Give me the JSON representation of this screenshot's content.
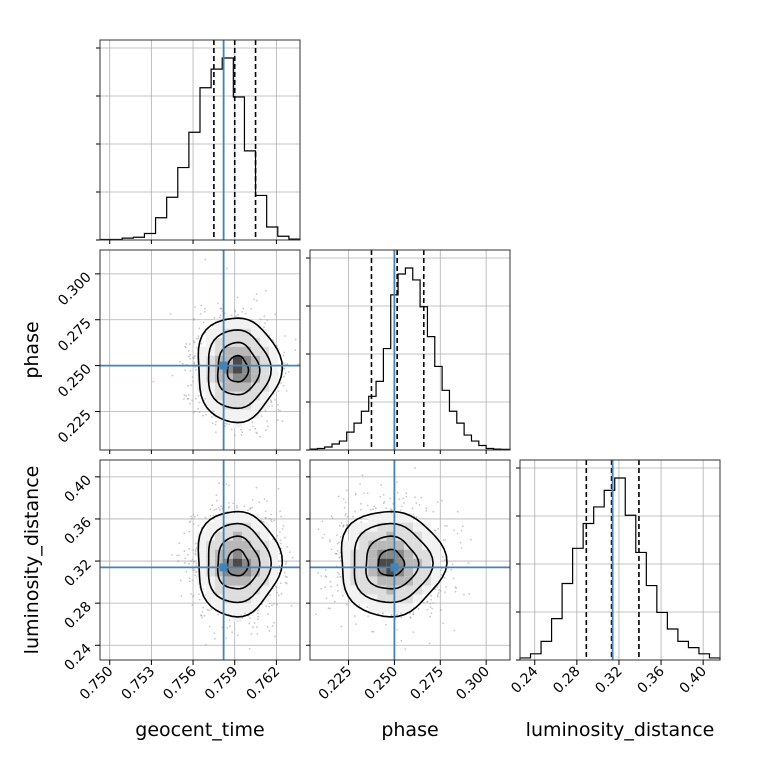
{
  "chart_data": {
    "type": "corner",
    "parameters": [
      "geocent_time",
      "phase",
      "luminosity_distance"
    ],
    "truth": {
      "geocent_time": 0.7582,
      "phase": 0.25,
      "luminosity_distance": 0.314
    },
    "sample_mean": {
      "geocent_time": 0.7592,
      "phase": 0.248,
      "luminosity_distance": 0.318
    },
    "axes": {
      "geocent_time": {
        "xlabel": "geocent_time",
        "range": [
          0.7493,
          0.7637
        ],
        "ticks": [
          0.75,
          0.753,
          0.756,
          0.759,
          0.762
        ],
        "tick_labels": [
          "0.750",
          "0.753",
          "0.756",
          "0.759",
          "0.762"
        ]
      },
      "phase": {
        "xlabel": "phase",
        "ylabel": "phase",
        "range": [
          0.204,
          0.313
        ],
        "ticks": [
          0.225,
          0.25,
          0.275,
          0.3
        ],
        "tick_labels": [
          "0.225",
          "0.250",
          "0.275",
          "0.300"
        ]
      },
      "luminosity_distance": {
        "xlabel": "luminosity_distance",
        "ylabel": "luminosity_distance",
        "range": [
          0.226,
          0.416
        ],
        "ticks": [
          0.24,
          0.28,
          0.32,
          0.36,
          0.4
        ],
        "tick_labels": [
          "0.24",
          "0.28",
          "0.32",
          "0.36",
          "0.40"
        ]
      }
    },
    "histograms": [
      {
        "param": "geocent_time",
        "bins": [
          0.7493,
          0.7501,
          0.7509,
          0.7517,
          0.7525,
          0.7533,
          0.7541,
          0.7549,
          0.7557,
          0.7565,
          0.7573,
          0.7581,
          0.7589,
          0.7597,
          0.7605,
          0.7613,
          0.7621,
          0.7629,
          0.7637
        ],
        "counts": [
          0.3,
          0.3,
          1,
          1.5,
          3.5,
          12,
          23,
          39,
          58,
          82,
          92,
          98,
          77,
          48,
          24,
          7,
          2,
          0.5
        ],
        "quantiles": [
          0.7575,
          0.759,
          0.7605
        ]
      },
      {
        "param": "phase",
        "bins": [
          0.204,
          0.208,
          0.212,
          0.216,
          0.22,
          0.224,
          0.228,
          0.232,
          0.236,
          0.24,
          0.244,
          0.248,
          0.252,
          0.256,
          0.26,
          0.264,
          0.268,
          0.272,
          0.276,
          0.28,
          0.284,
          0.288,
          0.292,
          0.296,
          0.3,
          0.304,
          0.308,
          0.313
        ],
        "counts": [
          0.3,
          0.5,
          1,
          2,
          3,
          6,
          9,
          13,
          18,
          23,
          34,
          52,
          59,
          61,
          57,
          48,
          38,
          28,
          20,
          13,
          9,
          5,
          3,
          1.5,
          0.5,
          0.3,
          0.2
        ],
        "quantiles": [
          0.2375,
          0.2515,
          0.266
        ]
      },
      {
        "param": "luminosity_distance",
        "bins": [
          0.226,
          0.236,
          0.246,
          0.256,
          0.266,
          0.276,
          0.286,
          0.296,
          0.306,
          0.316,
          0.326,
          0.336,
          0.346,
          0.356,
          0.366,
          0.376,
          0.386,
          0.396,
          0.406,
          0.416
        ],
        "counts": [
          1,
          3,
          9,
          20,
          37,
          54,
          66,
          74,
          82,
          88,
          70,
          52,
          36,
          23,
          15,
          9,
          6,
          3,
          1
        ],
        "quantiles": [
          0.289,
          0.313,
          0.339
        ]
      }
    ],
    "contour_levels_sigma": [
      0.5,
      1.0,
      1.5,
      2.0
    ],
    "scatter_note": "grey sample points outside the outer contour",
    "truth_color": "#4682b4",
    "hist_color": "#000000",
    "quantile_style": "dashed",
    "grid": true
  }
}
